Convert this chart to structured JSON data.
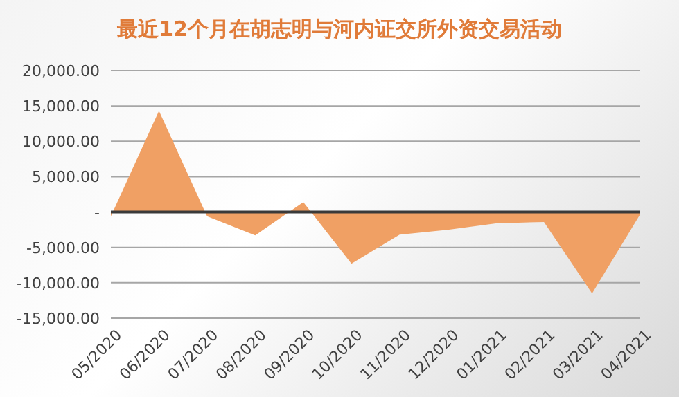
{
  "chart_data": {
    "type": "area",
    "title": "最近12个月在胡志明与河内证交所外资交易活动",
    "categories": [
      "05/2020",
      "06/2020",
      "07/2020",
      "08/2020",
      "09/2020",
      "10/2020",
      "11/2020",
      "12/2020",
      "01/2021",
      "02/2021",
      "03/2021",
      "04/2021"
    ],
    "values": [
      -600,
      14300,
      -600,
      -3300,
      1400,
      -7300,
      -3200,
      -2500,
      -1600,
      -1400,
      -11500,
      -300
    ],
    "color": "#f0a064",
    "ylim": [
      -15000,
      20000
    ],
    "yticks": [
      {
        "value": -15000,
        "label": "-15,000.00"
      },
      {
        "value": -10000,
        "label": "-10,000.00"
      },
      {
        "value": -5000,
        "label": "-5,000.00"
      },
      {
        "value": 0,
        "label": "-"
      },
      {
        "value": 5000,
        "label": "5,000.00"
      },
      {
        "value": 10000,
        "label": "10,000.00"
      },
      {
        "value": 15000,
        "label": "15,000.00"
      },
      {
        "value": 20000,
        "label": "20,000.00"
      }
    ],
    "grid": "y"
  }
}
